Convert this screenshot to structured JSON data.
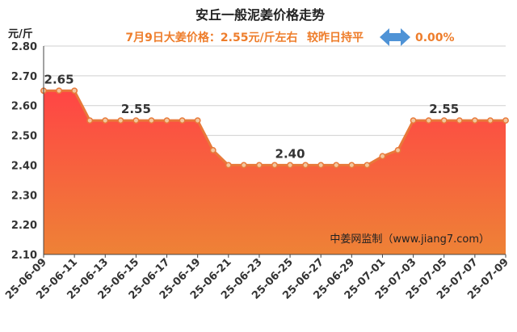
{
  "title": "安丘一般泥姜价格走势",
  "summary": {
    "price_text": "7月9日大姜价格：2.55元/斤左右",
    "compare_text": "较昨日持平",
    "change_text": "0.00%",
    "accent_color": "#ee7d2b",
    "arrow_color": "#4f93d6",
    "arrow_icon": "double-arrow-icon"
  },
  "watermark": "中姜网监制（www.jiang7.com）",
  "chart_data": {
    "type": "area",
    "title": "安丘一般泥姜价格走势",
    "ylabel": "元/斤",
    "xlabel": "",
    "ylim": [
      2.1,
      2.8
    ],
    "yticks": [
      "2.10",
      "2.20",
      "2.30",
      "2.40",
      "2.50",
      "2.60",
      "2.70",
      "2.80"
    ],
    "grid": true,
    "legend": "none",
    "x_tick_labels": [
      "25-06-09",
      "25-06-11",
      "25-06-13",
      "25-06-15",
      "25-06-17",
      "25-06-19",
      "25-06-21",
      "25-06-23",
      "25-06-25",
      "25-06-27",
      "25-06-29",
      "25-07-01",
      "25-07-03",
      "25-07-05",
      "25-07-07",
      "25-07-09"
    ],
    "x": [
      "25-06-09",
      "25-06-10",
      "25-06-11",
      "25-06-12",
      "25-06-13",
      "25-06-14",
      "25-06-15",
      "25-06-16",
      "25-06-17",
      "25-06-18",
      "25-06-19",
      "25-06-20",
      "25-06-21",
      "25-06-22",
      "25-06-23",
      "25-06-24",
      "25-06-25",
      "25-06-26",
      "25-06-27",
      "25-06-28",
      "25-06-29",
      "25-06-30",
      "25-07-01",
      "25-07-02",
      "25-07-03",
      "25-07-04",
      "25-07-05",
      "25-07-06",
      "25-07-07",
      "25-07-08",
      "25-07-09"
    ],
    "values": [
      2.65,
      2.65,
      2.65,
      2.55,
      2.55,
      2.55,
      2.55,
      2.55,
      2.55,
      2.55,
      2.55,
      2.45,
      2.4,
      2.4,
      2.4,
      2.4,
      2.4,
      2.4,
      2.4,
      2.4,
      2.4,
      2.4,
      2.43,
      2.45,
      2.55,
      2.55,
      2.55,
      2.55,
      2.55,
      2.55,
      2.55
    ],
    "data_labels": [
      {
        "x": "25-06-10",
        "text": "2.65"
      },
      {
        "x": "25-06-15",
        "text": "2.55"
      },
      {
        "x": "25-06-25",
        "text": "2.40"
      },
      {
        "x": "25-07-05",
        "text": "2.55"
      }
    ],
    "colors": {
      "line": "#e8793a",
      "marker_fill": "#f2c79e",
      "fill_top": "#ff4545",
      "fill_bottom": "#ee8236"
    }
  }
}
